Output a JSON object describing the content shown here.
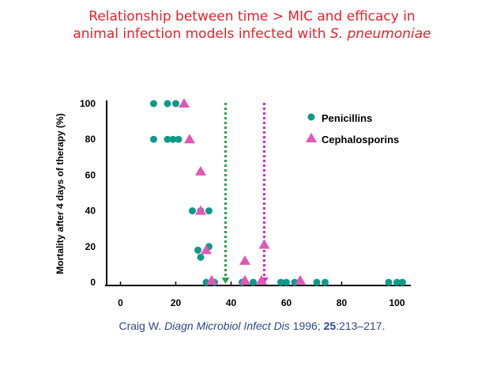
{
  "title": {
    "line1": "Relationship between time > MIC and efficacy in",
    "line2_prefix": "animal infection models infected with ",
    "line2_italic": "S. pneumoniae"
  },
  "citation": {
    "author": "Craig W. ",
    "journal": "Diagn Microbiol Infect Dis",
    "year": " 1996; ",
    "volume": "25",
    "pages": ":213–217."
  },
  "chart_data": {
    "type": "scatter",
    "ylabel": "Mortality after 4 days of therapy (%)",
    "xlabel": "",
    "xlim": [
      -5,
      105
    ],
    "ylim": [
      0,
      100
    ],
    "x_ticks": [
      0,
      20,
      40,
      60,
      80,
      100
    ],
    "y_ticks": [
      0,
      20,
      40,
      60,
      80,
      100
    ],
    "legend_position": "top-right",
    "series": [
      {
        "name": "Penicillins",
        "marker": "circle",
        "color": "#0e9a8a",
        "points": [
          [
            12,
            100
          ],
          [
            17,
            100
          ],
          [
            20,
            100
          ],
          [
            12,
            80
          ],
          [
            17,
            80
          ],
          [
            19,
            80
          ],
          [
            21,
            80
          ],
          [
            26,
            40
          ],
          [
            29,
            40
          ],
          [
            32,
            40
          ],
          [
            32,
            20
          ],
          [
            28,
            18
          ],
          [
            29,
            14
          ],
          [
            31,
            0
          ],
          [
            34,
            0
          ],
          [
            44,
            0
          ],
          [
            48,
            0
          ],
          [
            58,
            0
          ],
          [
            60,
            0
          ],
          [
            63,
            0
          ],
          [
            71,
            0
          ],
          [
            74,
            0
          ],
          [
            97,
            0
          ],
          [
            100,
            0
          ],
          [
            102,
            0
          ]
        ]
      },
      {
        "name": "Cephalosporins",
        "marker": "triangle",
        "color": "#e256b8",
        "points": [
          [
            23,
            100
          ],
          [
            25,
            80
          ],
          [
            29,
            62
          ],
          [
            29,
            40
          ],
          [
            31,
            18
          ],
          [
            45,
            12
          ],
          [
            52,
            21
          ],
          [
            65,
            1
          ],
          [
            51,
            1
          ],
          [
            33,
            1
          ],
          [
            45,
            1
          ]
        ]
      }
    ],
    "reference_lines": [
      {
        "x": 38,
        "color": "#2e9e4f"
      },
      {
        "x": 52,
        "color": "#e020e0"
      }
    ]
  }
}
